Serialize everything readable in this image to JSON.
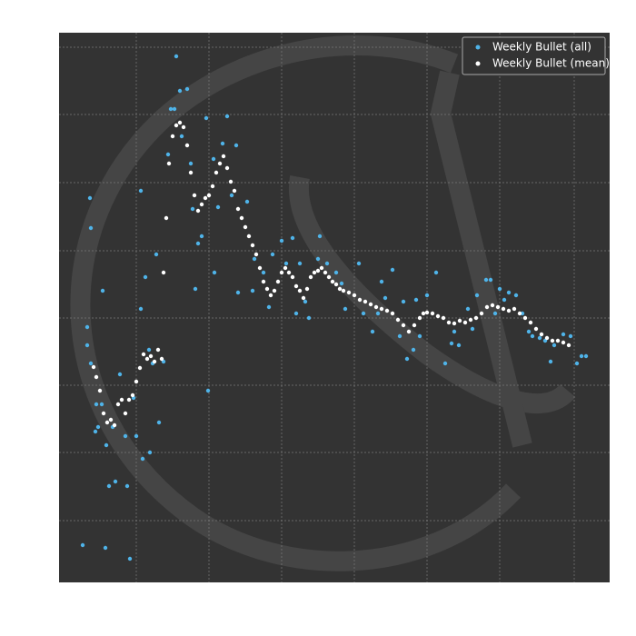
{
  "chart_data": {
    "type": "scatter",
    "xlim": [
      0,
      606
    ],
    "ylim": [
      0,
      605
    ],
    "xticks": [
      85,
      165,
      245,
      325,
      405,
      485,
      567
    ],
    "yticks": [
      68,
      143,
      217,
      291,
      365,
      440,
      515,
      589
    ],
    "grid": true,
    "legend": "upper right",
    "series": [
      {
        "name": "Weekly Bullet (all)",
        "color": "#4fb3e8",
        "x": [
          26,
          51,
          78,
          34,
          35,
          31,
          48,
          129,
          133,
          141,
          164,
          171,
          185,
          162,
          55,
          62,
          75,
          92,
          100,
          90,
          90,
          95,
          110,
          107,
          120,
          123,
          127,
          147,
          150,
          153,
          170,
          180,
          195,
          207,
          213,
          197,
          225,
          235,
          245,
          257,
          265,
          275,
          285,
          287,
          305,
          315,
          330,
          345,
          355,
          367,
          375,
          383,
          390,
          397,
          405,
          415,
          425,
          432,
          440,
          450,
          460,
          470,
          475,
          485,
          495,
          503,
          510,
          521,
          535,
          541,
          545,
          555,
          563,
          570,
          575,
          580,
          40,
          43,
          47,
          52,
          59,
          67,
          73,
          82,
          85,
          99,
          103,
          115,
          135,
          145,
          157,
          175,
          190,
          215,
          231,
          250,
          261,
          271,
          295,
          311,
          335,
          351,
          359,
          379,
          393,
          435,
          455,
          480,
          490,
          517,
          529,
          31,
          35,
          41
        ],
        "values": [
          41,
          38,
          26,
          423,
          390,
          281,
          321,
          579,
          541,
          543,
          211,
          341,
          513,
          511,
          106,
          111,
          106,
          136,
          143,
          431,
          301,
          336,
          176,
          361,
          471,
          521,
          521,
          411,
          323,
          373,
          466,
          483,
          481,
          419,
          321,
          319,
          341,
          361,
          376,
          379,
          351,
          291,
          356,
          381,
          341,
          301,
          351,
          276,
          331,
          344,
          271,
          246,
          256,
          271,
          316,
          341,
          241,
          263,
          261,
          301,
          316,
          333,
          333,
          323,
          319,
          316,
          296,
          271,
          266,
          243,
          261,
          273,
          271,
          241,
          249,
          249,
          166,
          171,
          196,
          151,
          171,
          229,
          161,
          203,
          161,
          256,
          241,
          243,
          491,
          461,
          381,
          413,
          426,
          356,
          303,
          351,
          296,
          309,
          351,
          329,
          296,
          296,
          313,
          309,
          311,
          276,
          279,
          296,
          311,
          276,
          269,
          261,
          241,
          196
        ]
      },
      {
        "name": "Weekly Bullet (mean)",
        "color": "#ffffff",
        "x": [
          38,
          41,
          45,
          49,
          53,
          57,
          61,
          65,
          69,
          73,
          77,
          81,
          85,
          89,
          93,
          97,
          101,
          105,
          109,
          113,
          115,
          118,
          121,
          125,
          129,
          133,
          137,
          141,
          145,
          149,
          153,
          157,
          161,
          165,
          169,
          173,
          177,
          181,
          185,
          189,
          193,
          197,
          201,
          205,
          209,
          213,
          217,
          221,
          225,
          229,
          233,
          237,
          241,
          245,
          249,
          253,
          257,
          261,
          265,
          269,
          273,
          277,
          281,
          285,
          289,
          293,
          297,
          301,
          305,
          309,
          313,
          319,
          325,
          331,
          337,
          343,
          349,
          355,
          361,
          367,
          373,
          379,
          385,
          391,
          397,
          401,
          405,
          411,
          417,
          423,
          429,
          435,
          441,
          447,
          453,
          459,
          465,
          471,
          477,
          483,
          489,
          495,
          501,
          507,
          513,
          519,
          525,
          531,
          537,
          543,
          549,
          555,
          561
        ],
        "values": [
          237,
          226,
          211,
          186,
          176,
          179,
          173,
          196,
          201,
          186,
          201,
          206,
          221,
          236,
          251,
          246,
          249,
          243,
          256,
          246,
          341,
          401,
          461,
          491,
          503,
          506,
          501,
          481,
          451,
          426,
          409,
          416,
          423,
          426,
          436,
          451,
          461,
          469,
          456,
          441,
          431,
          411,
          401,
          391,
          381,
          371,
          361,
          346,
          331,
          323,
          316,
          321,
          331,
          341,
          346,
          341,
          336,
          326,
          321,
          313,
          323,
          336,
          341,
          343,
          346,
          341,
          336,
          331,
          328,
          323,
          321,
          319,
          316,
          311,
          309,
          306,
          303,
          301,
          299,
          296,
          289,
          283,
          276,
          283,
          291,
          296,
          297,
          296,
          293,
          291,
          286,
          285,
          288,
          286,
          289,
          291,
          296,
          303,
          305,
          303,
          301,
          299,
          301,
          296,
          291,
          286,
          279,
          273,
          269,
          266,
          266,
          264,
          261
        ]
      }
    ]
  }
}
